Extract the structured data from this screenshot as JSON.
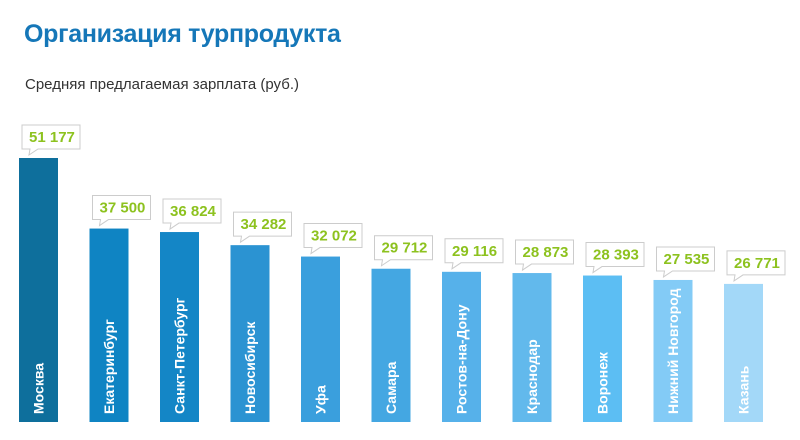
{
  "header": {
    "title": "Организация турпродукта",
    "subtitle": "Средняя предлагаемая зарплата (руб.)"
  },
  "chart_data": {
    "type": "bar",
    "title": "Организация турпродукта",
    "subtitle": "Средняя предлагаемая зарплата (руб.)",
    "xlabel": "",
    "ylabel": "",
    "categories": [
      "Москва",
      "Екатеринбург",
      "Санкт-Петербург",
      "Новосибирск",
      "Уфа",
      "Самара",
      "Ростов-на-Дону",
      "Краснодар",
      "Воронеж",
      "Нижний Новгород",
      "Казань"
    ],
    "values": [
      51177,
      37500,
      36824,
      34282,
      32072,
      29712,
      29116,
      28873,
      28393,
      27535,
      26771
    ],
    "value_labels": [
      "51 177",
      "37 500",
      "36 824",
      "34 282",
      "32 072",
      "29 712",
      "29 116",
      "28 873",
      "28 393",
      "27 535",
      "26 771"
    ],
    "ylim": [
      0,
      51177
    ],
    "grid": false,
    "legend": "none",
    "colors": [
      "#0e6f9c",
      "#0f84c3",
      "#1486c6",
      "#2b93d2",
      "#3a9fdd",
      "#44a7e2",
      "#56b1ea",
      "#62b9ec",
      "#5cbef3",
      "#83cbf6",
      "#a3d8f8"
    ],
    "label_color": "#8dc21f",
    "callout_border": "#cccccc"
  }
}
